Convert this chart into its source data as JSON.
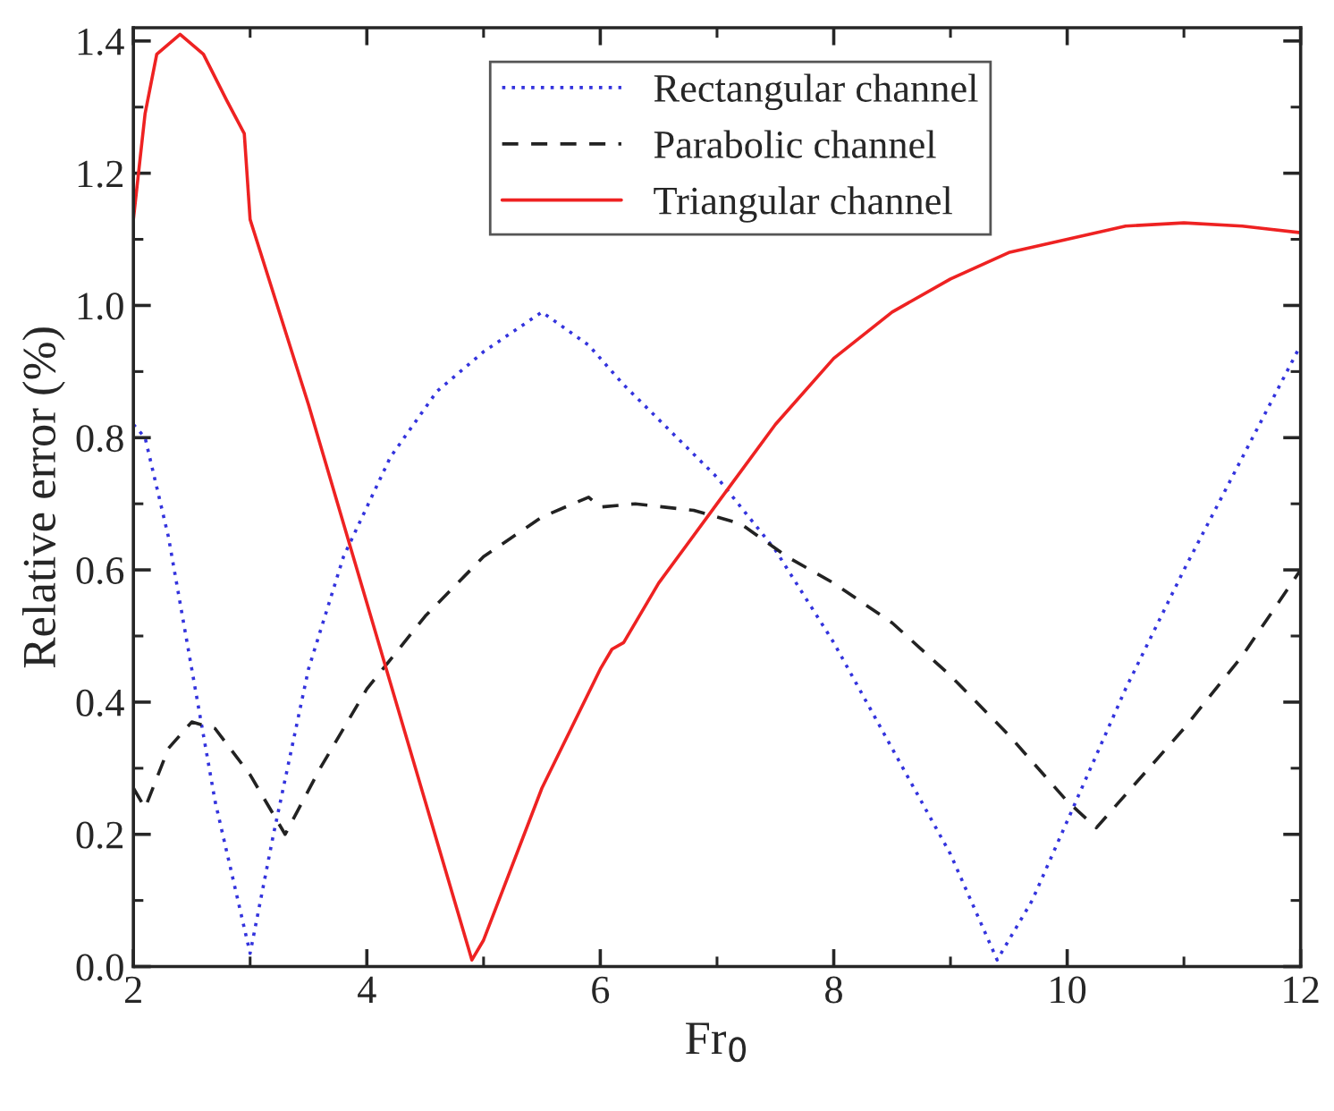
{
  "chart_data": {
    "type": "line",
    "xlabel": "Fr$_{0}$",
    "ylabel": "Relative error (%)",
    "xlim": [
      2,
      12
    ],
    "xticks": [
      2,
      4,
      6,
      8,
      10,
      12
    ],
    "ylim": [
      0,
      1.42
    ],
    "yticks": [
      {
        "value": 0,
        "label": "0.0"
      },
      {
        "value": 0.2,
        "label": "0.2"
      },
      {
        "value": 0.4,
        "label": "0.4"
      },
      {
        "value": 0.6,
        "label": "0.6"
      },
      {
        "value": 0.8,
        "label": "0.8"
      },
      {
        "value": 1.0,
        "label": "1.0"
      },
      {
        "value": 1.2,
        "label": "1.2"
      },
      {
        "value": 1.4,
        "label": "1.4"
      }
    ],
    "grid": false,
    "legend": "top",
    "series": [
      {
        "name": "Rectangular channel",
        "color": "#3333dd",
        "line_style": "dotted",
        "x": [
          2,
          2.1,
          2.3,
          2.5,
          2.7,
          3.0,
          3.2,
          3.5,
          3.8,
          4.2,
          4.6,
          5.0,
          5.5,
          5.9,
          6.2,
          6.6,
          7.0,
          7.5,
          8.0,
          8.5,
          9.0,
          9.4,
          9.7,
          10.0,
          10.5,
          11.0,
          11.5,
          12.0
        ],
        "values": [
          0.82,
          0.8,
          0.65,
          0.45,
          0.25,
          0.02,
          0.2,
          0.45,
          0.62,
          0.77,
          0.87,
          0.93,
          0.99,
          0.94,
          0.88,
          0.81,
          0.74,
          0.63,
          0.49,
          0.33,
          0.17,
          0.01,
          0.1,
          0.22,
          0.42,
          0.6,
          0.77,
          0.94
        ]
      },
      {
        "name": "Parabolic channel",
        "color": "#222222",
        "line_style": "dashed",
        "x": [
          2,
          2.1,
          2.3,
          2.5,
          2.7,
          3.0,
          3.3,
          3.6,
          4.0,
          4.5,
          5.0,
          5.5,
          5.9,
          6.0,
          6.3,
          6.8,
          7.2,
          7.6,
          8.0,
          8.5,
          9.0,
          9.5,
          10.0,
          10.25,
          10.5,
          11.0,
          11.5,
          12.0
        ],
        "values": [
          0.27,
          0.24,
          0.33,
          0.37,
          0.36,
          0.29,
          0.2,
          0.3,
          0.42,
          0.53,
          0.62,
          0.68,
          0.71,
          0.695,
          0.7,
          0.69,
          0.67,
          0.62,
          0.58,
          0.52,
          0.44,
          0.35,
          0.25,
          0.21,
          0.26,
          0.36,
          0.47,
          0.6
        ]
      },
      {
        "name": "Triangular channel",
        "color": "#ee2222",
        "line_style": "solid",
        "x": [
          2,
          2.1,
          2.2,
          2.4,
          2.6,
          2.8,
          2.95,
          3.0,
          3.5,
          4.0,
          4.5,
          4.9,
          5.0,
          5.5,
          6.0,
          6.1,
          6.2,
          6.5,
          7.0,
          7.5,
          8.0,
          8.5,
          9.0,
          9.5,
          10.0,
          10.5,
          11.0,
          11.5,
          12.0
        ],
        "values": [
          1.13,
          1.29,
          1.38,
          1.41,
          1.38,
          1.31,
          1.26,
          1.13,
          0.85,
          0.55,
          0.25,
          0.01,
          0.04,
          0.27,
          0.45,
          0.48,
          0.49,
          0.58,
          0.7,
          0.82,
          0.92,
          0.99,
          1.04,
          1.08,
          1.1,
          1.12,
          1.125,
          1.12,
          1.11
        ]
      }
    ]
  }
}
